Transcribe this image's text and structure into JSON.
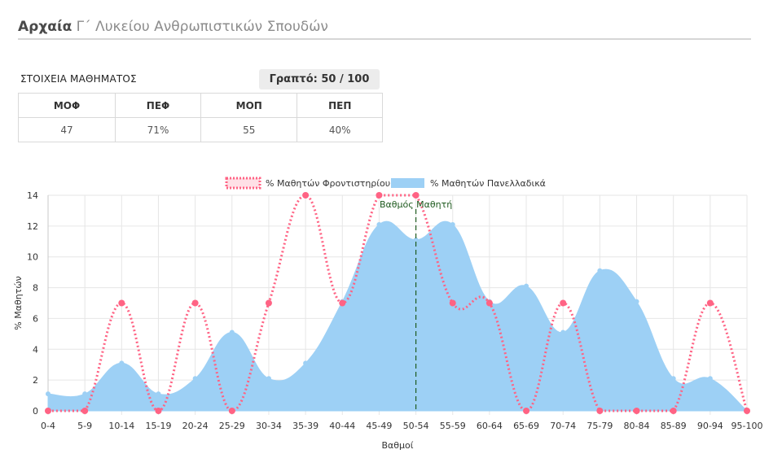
{
  "header": {
    "subject": "Αρχαία",
    "rest": " Γ΄ Λυκείου Ανθρωπιστικών Σπουδών"
  },
  "info": {
    "section_label": "ΣΤΟΙΧΕΙΑ ΜΑΘΗΜΑΤΟΣ",
    "written": "Γραπτό: 50 / 100"
  },
  "stats_table": {
    "headers": [
      "ΜΟΦ",
      "ΠΕΦ",
      "ΜΟΠ",
      "ΠΕΠ"
    ],
    "values": [
      "47",
      "71%",
      "55",
      "40%"
    ]
  },
  "chart_data": {
    "type": "line",
    "categories": [
      "0-4",
      "5-9",
      "10-14",
      "15-19",
      "20-24",
      "25-29",
      "30-34",
      "35-39",
      "40-44",
      "45-49",
      "50-54",
      "55-59",
      "60-64",
      "65-69",
      "70-74",
      "75-79",
      "80-84",
      "85-89",
      "90-94",
      "95-100"
    ],
    "series": [
      {
        "name": "% Μαθητών Φροντιστηρίου",
        "style": "dotted-line",
        "color": "#ff6384",
        "values": [
          0,
          0,
          7,
          0,
          7,
          0,
          7,
          14,
          7,
          14,
          14,
          7,
          7,
          0,
          7,
          0,
          0,
          0,
          7,
          0
        ]
      },
      {
        "name": "% Μαθητών Πανελλαδικά",
        "style": "filled-area",
        "color": "#9dd0f5",
        "values": [
          1.1,
          1.1,
          3.1,
          1.1,
          2.1,
          5.1,
          2.1,
          3.1,
          7.1,
          12.1,
          11.1,
          12.1,
          7.1,
          8.1,
          5.1,
          9.1,
          7.1,
          2.1,
          2.1,
          0
        ]
      }
    ],
    "xlabel": "Βαθμοί",
    "ylabel": "% Μαθητών",
    "yticks": [
      0,
      2,
      4,
      6,
      8,
      10,
      12,
      14
    ],
    "ylim": [
      0,
      14
    ],
    "grid": true,
    "legend_position": "top",
    "marker": {
      "label": "Βαθμός Μαθητή",
      "category": "50-54",
      "color": "#1e5a1e"
    }
  }
}
